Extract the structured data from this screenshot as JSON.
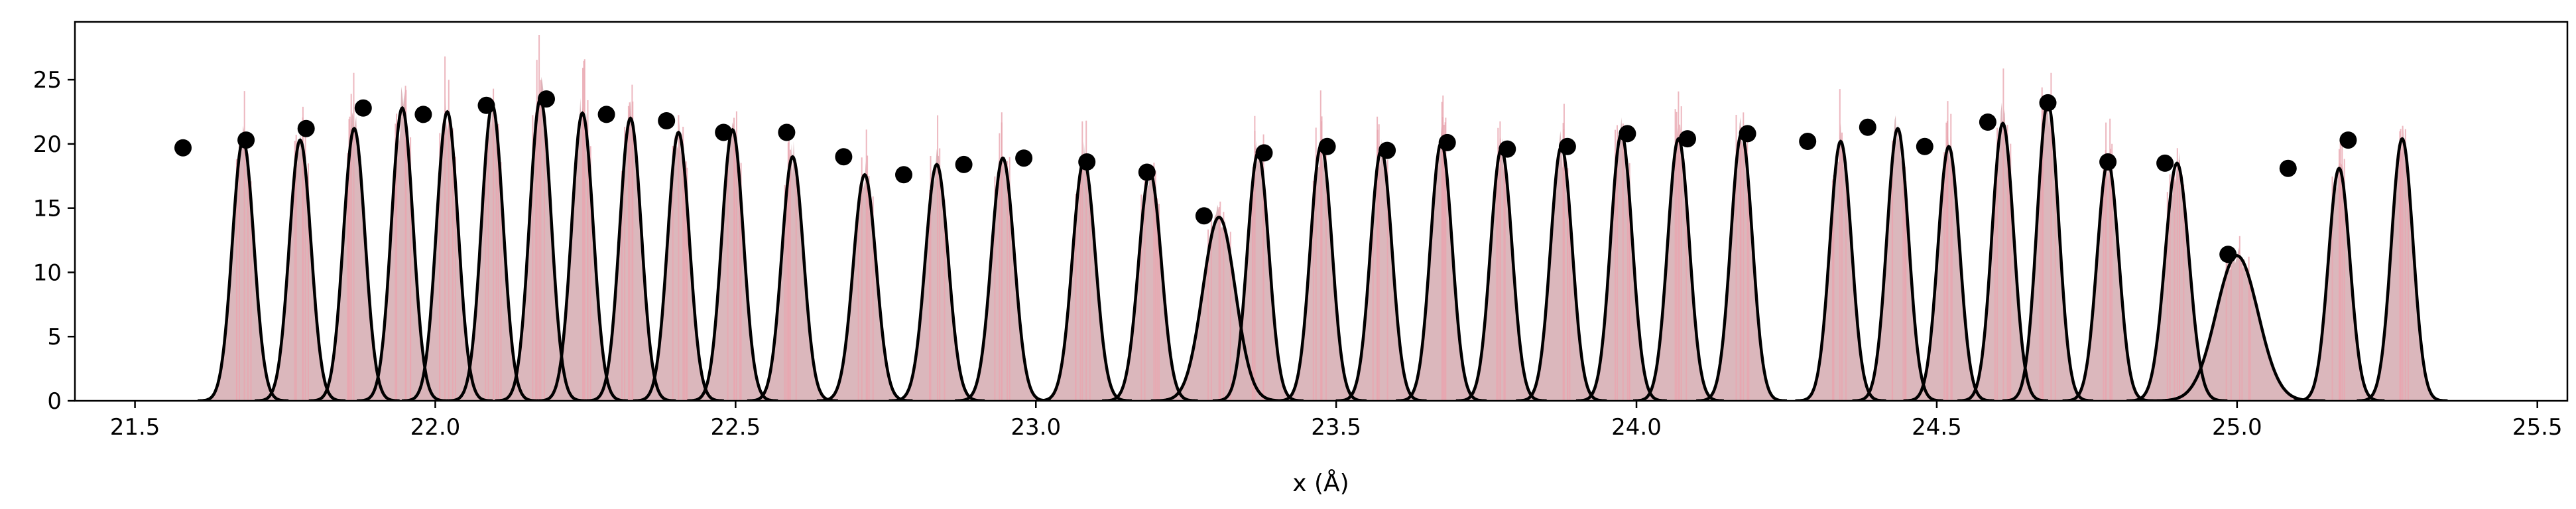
{
  "chart_data": {
    "type": "histogram with gaussian fits and scatter",
    "xlabel": "x (Å)",
    "ylabel": "",
    "xlim": [
      21.4,
      25.55
    ],
    "ylim": [
      0,
      29.5
    ],
    "x_ticks": [
      "21.5",
      "22.0",
      "22.5",
      "23.0",
      "23.5",
      "24.0",
      "24.5",
      "25.0",
      "25.5"
    ],
    "x_tick_values": [
      21.5,
      22.0,
      22.5,
      23.0,
      23.5,
      24.0,
      24.5,
      25.0,
      25.5
    ],
    "y_ticks": [
      "0",
      "5",
      "10",
      "15",
      "20",
      "25"
    ],
    "y_tick_values": [
      0,
      5,
      10,
      15,
      20,
      25
    ],
    "grid": false,
    "legend": "none",
    "colors": {
      "histogram_fill": "#d9b3b8",
      "histogram_spike": "#e9a6b0",
      "curve": "#000000",
      "points": "#000000"
    },
    "gaussian_peaks": [
      {
        "center": 21.68,
        "height": 20.3,
        "sigma": 0.018
      },
      {
        "center": 21.775,
        "height": 20.3,
        "sigma": 0.018
      },
      {
        "center": 21.865,
        "height": 21.2,
        "sigma": 0.018
      },
      {
        "center": 21.945,
        "height": 22.8,
        "sigma": 0.018
      },
      {
        "center": 22.02,
        "height": 22.5,
        "sigma": 0.018
      },
      {
        "center": 22.095,
        "height": 23.0,
        "sigma": 0.018
      },
      {
        "center": 22.175,
        "height": 23.5,
        "sigma": 0.018
      },
      {
        "center": 22.245,
        "height": 22.4,
        "sigma": 0.018
      },
      {
        "center": 22.325,
        "height": 22.0,
        "sigma": 0.018
      },
      {
        "center": 22.405,
        "height": 20.9,
        "sigma": 0.018
      },
      {
        "center": 22.495,
        "height": 21.1,
        "sigma": 0.018
      },
      {
        "center": 22.595,
        "height": 19.0,
        "sigma": 0.018
      },
      {
        "center": 22.715,
        "height": 17.6,
        "sigma": 0.019
      },
      {
        "center": 22.835,
        "height": 18.4,
        "sigma": 0.019
      },
      {
        "center": 22.945,
        "height": 18.9,
        "sigma": 0.019
      },
      {
        "center": 23.08,
        "height": 18.7,
        "sigma": 0.019
      },
      {
        "center": 23.19,
        "height": 17.8,
        "sigma": 0.019
      },
      {
        "center": 23.305,
        "height": 14.3,
        "sigma": 0.027
      },
      {
        "center": 23.37,
        "height": 19.3,
        "sigma": 0.018
      },
      {
        "center": 23.475,
        "height": 19.9,
        "sigma": 0.018
      },
      {
        "center": 23.575,
        "height": 19.5,
        "sigma": 0.018
      },
      {
        "center": 23.675,
        "height": 20.1,
        "sigma": 0.018
      },
      {
        "center": 23.775,
        "height": 19.6,
        "sigma": 0.018
      },
      {
        "center": 23.875,
        "height": 19.8,
        "sigma": 0.018
      },
      {
        "center": 23.975,
        "height": 20.8,
        "sigma": 0.018
      },
      {
        "center": 24.07,
        "height": 20.4,
        "sigma": 0.018
      },
      {
        "center": 24.175,
        "height": 20.8,
        "sigma": 0.018
      },
      {
        "center": 24.34,
        "height": 20.2,
        "sigma": 0.018
      },
      {
        "center": 24.435,
        "height": 21.2,
        "sigma": 0.018
      },
      {
        "center": 24.52,
        "height": 19.8,
        "sigma": 0.018
      },
      {
        "center": 24.61,
        "height": 21.6,
        "sigma": 0.018
      },
      {
        "center": 24.685,
        "height": 23.2,
        "sigma": 0.018
      },
      {
        "center": 24.785,
        "height": 18.6,
        "sigma": 0.018
      },
      {
        "center": 24.9,
        "height": 18.5,
        "sigma": 0.02
      },
      {
        "center": 25.0,
        "height": 11.3,
        "sigma": 0.035
      },
      {
        "center": 25.17,
        "height": 18.1,
        "sigma": 0.018
      },
      {
        "center": 25.275,
        "height": 20.4,
        "sigma": 0.018
      }
    ],
    "scatter_points": [
      {
        "x": 21.58,
        "y": 19.7
      },
      {
        "x": 21.685,
        "y": 20.3
      },
      {
        "x": 21.785,
        "y": 21.2
      },
      {
        "x": 21.88,
        "y": 22.8
      },
      {
        "x": 21.98,
        "y": 22.3
      },
      {
        "x": 22.085,
        "y": 23.0
      },
      {
        "x": 22.185,
        "y": 23.5
      },
      {
        "x": 22.285,
        "y": 22.3
      },
      {
        "x": 22.385,
        "y": 21.8
      },
      {
        "x": 22.48,
        "y": 20.9
      },
      {
        "x": 22.585,
        "y": 20.9
      },
      {
        "x": 22.68,
        "y": 19.0
      },
      {
        "x": 22.78,
        "y": 17.6
      },
      {
        "x": 22.88,
        "y": 18.4
      },
      {
        "x": 22.98,
        "y": 18.9
      },
      {
        "x": 23.085,
        "y": 18.6
      },
      {
        "x": 23.185,
        "y": 17.8
      },
      {
        "x": 23.28,
        "y": 14.4
      },
      {
        "x": 23.38,
        "y": 19.3
      },
      {
        "x": 23.485,
        "y": 19.8
      },
      {
        "x": 23.585,
        "y": 19.5
      },
      {
        "x": 23.685,
        "y": 20.1
      },
      {
        "x": 23.785,
        "y": 19.6
      },
      {
        "x": 23.885,
        "y": 19.8
      },
      {
        "x": 23.985,
        "y": 20.8
      },
      {
        "x": 24.085,
        "y": 20.4
      },
      {
        "x": 24.185,
        "y": 20.8
      },
      {
        "x": 24.285,
        "y": 20.2
      },
      {
        "x": 24.385,
        "y": 21.3
      },
      {
        "x": 24.48,
        "y": 19.8
      },
      {
        "x": 24.585,
        "y": 21.7
      },
      {
        "x": 24.685,
        "y": 23.2
      },
      {
        "x": 24.785,
        "y": 18.6
      },
      {
        "x": 24.88,
        "y": 18.5
      },
      {
        "x": 24.985,
        "y": 11.4
      },
      {
        "x": 25.085,
        "y": 18.1
      },
      {
        "x": 25.185,
        "y": 20.3
      }
    ]
  }
}
